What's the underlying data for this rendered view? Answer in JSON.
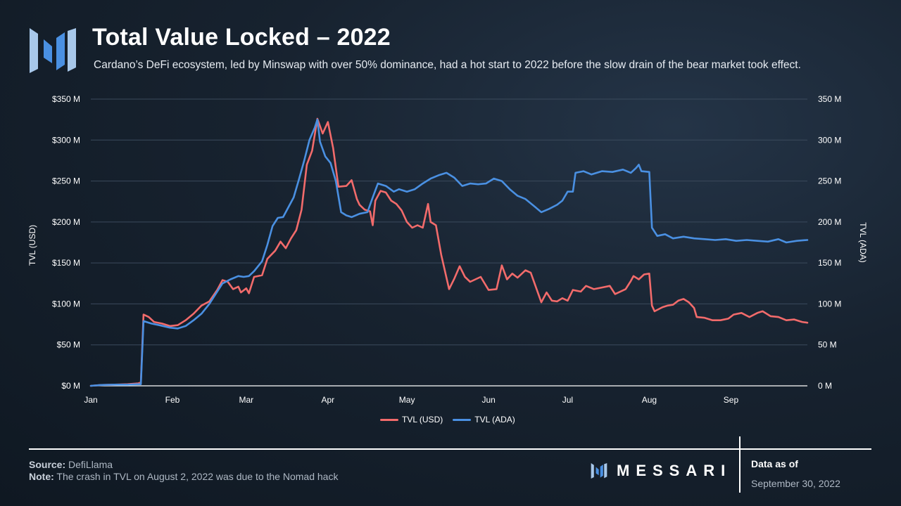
{
  "header": {
    "title": "Total Value Locked – 2022",
    "subtitle": "Cardano’s DeFi ecosystem, led by Minswap with over 50% dominance, had a hot start to 2022 before the slow drain of the bear market took effect."
  },
  "footer": {
    "source_label": "Source:",
    "source_text": "DefiLlama",
    "note_label": "Note:",
    "note_text": "The crash in TVL on August 2, 2022 was due to the Nomad hack",
    "brand": "MESSARI",
    "data_as_of_label": "Data as of",
    "data_as_of_date": "September 30, 2022"
  },
  "colors": {
    "usd": "#f26b6b",
    "ada": "#4a90e2",
    "grid": "#3b4a5c",
    "logo_light": "#a8c8ea",
    "logo_dark": "#4a90e2"
  },
  "chart_data": {
    "type": "line",
    "x_axis": {
      "type": "date",
      "range": [
        "2022-01-01",
        "2022-09-30"
      ]
    },
    "x_ticks": [
      {
        "date": "2022-01-01",
        "label": "Jan"
      },
      {
        "date": "2022-02-01",
        "label": "Feb"
      },
      {
        "date": "2022-03-01",
        "label": "Mar"
      },
      {
        "date": "2022-04-01",
        "label": "Apr"
      },
      {
        "date": "2022-05-01",
        "label": "May"
      },
      {
        "date": "2022-06-01",
        "label": "Jun"
      },
      {
        "date": "2022-07-01",
        "label": "Jul"
      },
      {
        "date": "2022-08-01",
        "label": "Aug"
      },
      {
        "date": "2022-09-01",
        "label": "Sep"
      }
    ],
    "y_left": {
      "label": "TVL (USD)",
      "range": [
        0,
        350
      ],
      "ticks": [
        {
          "value": 0,
          "label": "$0 M"
        },
        {
          "value": 50,
          "label": "$50 M"
        },
        {
          "value": 100,
          "label": "$100 M"
        },
        {
          "value": 150,
          "label": "$150 M"
        },
        {
          "value": 200,
          "label": "$200 M"
        },
        {
          "value": 250,
          "label": "$250 M"
        },
        {
          "value": 300,
          "label": "$300 M"
        },
        {
          "value": 350,
          "label": "$350 M"
        }
      ]
    },
    "y_right": {
      "label": "TVL (ADA)",
      "range": [
        0,
        350
      ],
      "ticks": [
        {
          "value": 0,
          "label": "0 M"
        },
        {
          "value": 50,
          "label": "50 M"
        },
        {
          "value": 100,
          "label": "100 M"
        },
        {
          "value": 150,
          "label": "150 M"
        },
        {
          "value": 200,
          "label": "200 M"
        },
        {
          "value": 250,
          "label": "250 M"
        },
        {
          "value": 300,
          "label": "300 M"
        },
        {
          "value": 350,
          "label": "350 M"
        }
      ]
    },
    "grid": true,
    "legend_position": "bottom-center",
    "series": [
      {
        "name": "TVL (USD)",
        "axis": "left",
        "color": "#f26b6b",
        "points": [
          [
            "2022-01-01",
            0
          ],
          [
            "2022-01-05",
            1
          ],
          [
            "2022-01-10",
            1.5
          ],
          [
            "2022-01-15",
            2
          ],
          [
            "2022-01-19",
            3
          ],
          [
            "2022-01-20",
            4
          ],
          [
            "2022-01-21",
            87
          ],
          [
            "2022-01-23",
            84
          ],
          [
            "2022-01-25",
            78
          ],
          [
            "2022-01-28",
            76
          ],
          [
            "2022-01-31",
            73
          ],
          [
            "2022-02-03",
            74
          ],
          [
            "2022-02-06",
            80
          ],
          [
            "2022-02-09",
            88
          ],
          [
            "2022-02-12",
            98
          ],
          [
            "2022-02-15",
            103
          ],
          [
            "2022-02-18",
            117
          ],
          [
            "2022-02-20",
            129
          ],
          [
            "2022-02-22",
            127
          ],
          [
            "2022-02-24",
            118
          ],
          [
            "2022-02-26",
            121
          ],
          [
            "2022-02-27",
            114
          ],
          [
            "2022-03-01",
            119
          ],
          [
            "2022-03-02",
            113
          ],
          [
            "2022-03-04",
            133
          ],
          [
            "2022-03-07",
            135
          ],
          [
            "2022-03-09",
            155
          ],
          [
            "2022-03-12",
            165
          ],
          [
            "2022-03-14",
            176
          ],
          [
            "2022-03-16",
            168
          ],
          [
            "2022-03-18",
            180
          ],
          [
            "2022-03-20",
            190
          ],
          [
            "2022-03-22",
            215
          ],
          [
            "2022-03-24",
            270
          ],
          [
            "2022-03-26",
            287
          ],
          [
            "2022-03-28",
            326
          ],
          [
            "2022-03-30",
            308
          ],
          [
            "2022-04-01",
            322
          ],
          [
            "2022-04-03",
            290
          ],
          [
            "2022-04-05",
            243
          ],
          [
            "2022-04-08",
            244
          ],
          [
            "2022-04-10",
            251
          ],
          [
            "2022-04-12",
            228
          ],
          [
            "2022-04-13",
            221
          ],
          [
            "2022-04-15",
            215
          ],
          [
            "2022-04-17",
            213
          ],
          [
            "2022-04-18",
            196
          ],
          [
            "2022-04-19",
            226
          ],
          [
            "2022-04-21",
            238
          ],
          [
            "2022-04-23",
            236
          ],
          [
            "2022-04-25",
            226
          ],
          [
            "2022-04-27",
            222
          ],
          [
            "2022-04-29",
            214
          ],
          [
            "2022-05-01",
            200
          ],
          [
            "2022-05-03",
            193
          ],
          [
            "2022-05-05",
            196
          ],
          [
            "2022-05-07",
            193
          ],
          [
            "2022-05-09",
            222
          ],
          [
            "2022-05-10",
            200
          ],
          [
            "2022-05-12",
            196
          ],
          [
            "2022-05-14",
            160
          ],
          [
            "2022-05-17",
            118
          ],
          [
            "2022-05-19",
            131
          ],
          [
            "2022-05-21",
            146
          ],
          [
            "2022-05-23",
            133
          ],
          [
            "2022-05-25",
            127
          ],
          [
            "2022-05-27",
            130
          ],
          [
            "2022-05-29",
            133
          ],
          [
            "2022-06-01",
            117
          ],
          [
            "2022-06-04",
            118
          ],
          [
            "2022-06-06",
            147
          ],
          [
            "2022-06-08",
            130
          ],
          [
            "2022-06-10",
            137
          ],
          [
            "2022-06-12",
            132
          ],
          [
            "2022-06-15",
            141
          ],
          [
            "2022-06-17",
            138
          ],
          [
            "2022-06-19",
            120
          ],
          [
            "2022-06-21",
            102
          ],
          [
            "2022-06-23",
            114
          ],
          [
            "2022-06-25",
            104
          ],
          [
            "2022-06-27",
            103
          ],
          [
            "2022-06-29",
            107
          ],
          [
            "2022-07-01",
            104
          ],
          [
            "2022-07-03",
            117
          ],
          [
            "2022-07-06",
            115
          ],
          [
            "2022-07-08",
            122
          ],
          [
            "2022-07-11",
            118
          ],
          [
            "2022-07-14",
            120
          ],
          [
            "2022-07-17",
            122
          ],
          [
            "2022-07-19",
            112
          ],
          [
            "2022-07-21",
            115
          ],
          [
            "2022-07-23",
            118
          ],
          [
            "2022-07-25",
            128
          ],
          [
            "2022-07-26",
            134
          ],
          [
            "2022-07-28",
            130
          ],
          [
            "2022-07-30",
            136
          ],
          [
            "2022-08-01",
            137
          ],
          [
            "2022-08-02",
            98
          ],
          [
            "2022-08-03",
            91
          ],
          [
            "2022-08-06",
            96
          ],
          [
            "2022-08-08",
            98
          ],
          [
            "2022-08-10",
            99
          ],
          [
            "2022-08-12",
            104
          ],
          [
            "2022-08-14",
            106
          ],
          [
            "2022-08-16",
            102
          ],
          [
            "2022-08-18",
            95
          ],
          [
            "2022-08-19",
            84
          ],
          [
            "2022-08-22",
            83
          ],
          [
            "2022-08-25",
            80
          ],
          [
            "2022-08-28",
            80
          ],
          [
            "2022-08-31",
            82
          ],
          [
            "2022-09-02",
            87
          ],
          [
            "2022-09-05",
            89
          ],
          [
            "2022-09-08",
            84
          ],
          [
            "2022-09-11",
            89
          ],
          [
            "2022-09-13",
            91
          ],
          [
            "2022-09-16",
            85
          ],
          [
            "2022-09-19",
            84
          ],
          [
            "2022-09-22",
            80
          ],
          [
            "2022-09-25",
            81
          ],
          [
            "2022-09-28",
            78
          ],
          [
            "2022-09-30",
            77
          ]
        ]
      },
      {
        "name": "TVL (ADA)",
        "axis": "right",
        "color": "#4a90e2",
        "points": [
          [
            "2022-01-01",
            0
          ],
          [
            "2022-01-05",
            1
          ],
          [
            "2022-01-10",
            1.5
          ],
          [
            "2022-01-15",
            1.5
          ],
          [
            "2022-01-19",
            2
          ],
          [
            "2022-01-20",
            2
          ],
          [
            "2022-01-21",
            79
          ],
          [
            "2022-01-24",
            76
          ],
          [
            "2022-01-27",
            74
          ],
          [
            "2022-01-31",
            71
          ],
          [
            "2022-02-03",
            70
          ],
          [
            "2022-02-06",
            73
          ],
          [
            "2022-02-09",
            80
          ],
          [
            "2022-02-12",
            88
          ],
          [
            "2022-02-15",
            100
          ],
          [
            "2022-02-18",
            115
          ],
          [
            "2022-02-20",
            125
          ],
          [
            "2022-02-23",
            130
          ],
          [
            "2022-02-26",
            134
          ],
          [
            "2022-02-28",
            133
          ],
          [
            "2022-03-02",
            134
          ],
          [
            "2022-03-04",
            140
          ],
          [
            "2022-03-07",
            152
          ],
          [
            "2022-03-09",
            172
          ],
          [
            "2022-03-11",
            195
          ],
          [
            "2022-03-13",
            205
          ],
          [
            "2022-03-15",
            206
          ],
          [
            "2022-03-17",
            218
          ],
          [
            "2022-03-19",
            230
          ],
          [
            "2022-03-21",
            252
          ],
          [
            "2022-03-23",
            275
          ],
          [
            "2022-03-25",
            300
          ],
          [
            "2022-03-27",
            315
          ],
          [
            "2022-03-28",
            325
          ],
          [
            "2022-03-29",
            298
          ],
          [
            "2022-03-31",
            280
          ],
          [
            "2022-04-02",
            272
          ],
          [
            "2022-04-04",
            250
          ],
          [
            "2022-04-06",
            212
          ],
          [
            "2022-04-08",
            208
          ],
          [
            "2022-04-10",
            206
          ],
          [
            "2022-04-13",
            210
          ],
          [
            "2022-04-16",
            212
          ],
          [
            "2022-04-18",
            230
          ],
          [
            "2022-04-20",
            247
          ],
          [
            "2022-04-23",
            244
          ],
          [
            "2022-04-26",
            237
          ],
          [
            "2022-04-28",
            240
          ],
          [
            "2022-05-01",
            237
          ],
          [
            "2022-05-04",
            240
          ],
          [
            "2022-05-07",
            247
          ],
          [
            "2022-05-10",
            253
          ],
          [
            "2022-05-13",
            257
          ],
          [
            "2022-05-16",
            260
          ],
          [
            "2022-05-19",
            254
          ],
          [
            "2022-05-22",
            244
          ],
          [
            "2022-05-25",
            247
          ],
          [
            "2022-05-28",
            246
          ],
          [
            "2022-05-31",
            247
          ],
          [
            "2022-06-03",
            253
          ],
          [
            "2022-06-06",
            250
          ],
          [
            "2022-06-09",
            240
          ],
          [
            "2022-06-12",
            232
          ],
          [
            "2022-06-15",
            228
          ],
          [
            "2022-06-18",
            220
          ],
          [
            "2022-06-21",
            212
          ],
          [
            "2022-06-24",
            216
          ],
          [
            "2022-06-27",
            221
          ],
          [
            "2022-06-29",
            226
          ],
          [
            "2022-07-01",
            237
          ],
          [
            "2022-07-03",
            237
          ],
          [
            "2022-07-04",
            260
          ],
          [
            "2022-07-07",
            262
          ],
          [
            "2022-07-10",
            258
          ],
          [
            "2022-07-14",
            262
          ],
          [
            "2022-07-18",
            261
          ],
          [
            "2022-07-22",
            264
          ],
          [
            "2022-07-25",
            260
          ],
          [
            "2022-07-27",
            266
          ],
          [
            "2022-07-28",
            270
          ],
          [
            "2022-07-29",
            262
          ],
          [
            "2022-08-01",
            261
          ],
          [
            "2022-08-02",
            193
          ],
          [
            "2022-08-04",
            183
          ],
          [
            "2022-08-07",
            185
          ],
          [
            "2022-08-10",
            180
          ],
          [
            "2022-08-14",
            182
          ],
          [
            "2022-08-18",
            180
          ],
          [
            "2022-08-22",
            179
          ],
          [
            "2022-08-26",
            178
          ],
          [
            "2022-08-30",
            179
          ],
          [
            "2022-09-03",
            177
          ],
          [
            "2022-09-07",
            178
          ],
          [
            "2022-09-11",
            177
          ],
          [
            "2022-09-15",
            176
          ],
          [
            "2022-09-19",
            179
          ],
          [
            "2022-09-22",
            175
          ],
          [
            "2022-09-26",
            177
          ],
          [
            "2022-09-30",
            178
          ]
        ]
      }
    ]
  }
}
